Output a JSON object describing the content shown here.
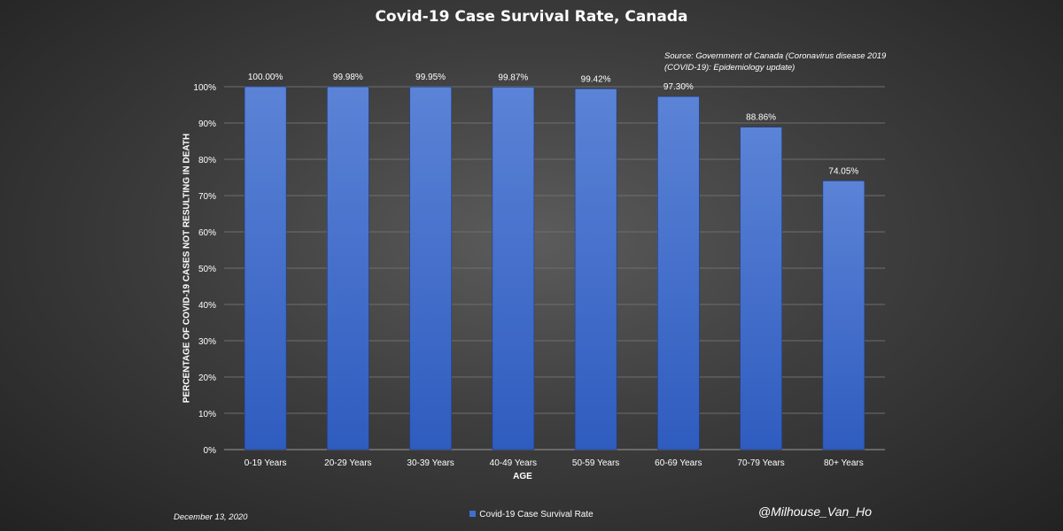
{
  "chart_data": {
    "type": "bar",
    "title": "Covid-19 Case Survival Rate, Canada",
    "source": "Source: Government of Canada (Coronavirus disease 2019 (COVID-19): Epidemiology update)",
    "xlabel": "AGE",
    "ylabel": "PERCENTAGE OF COVID-19 CASES NOT RESULTING IN DEATH",
    "categories": [
      "0-19 Years",
      "20-29 Years",
      "30-39 Years",
      "40-49 Years",
      "50-59 Years",
      "60-69 Years",
      "70-79 Years",
      "80+ Years"
    ],
    "series": [
      {
        "name": "Covid-19 Case Survival Rate",
        "values": [
          100.0,
          99.98,
          99.95,
          99.87,
          99.42,
          97.3,
          88.86,
          74.05
        ],
        "data_labels": [
          "100.00%",
          "99.98%",
          "99.95%",
          "99.87%",
          "99.42%",
          "97.30%",
          "88.86%",
          "74.05%"
        ]
      }
    ],
    "ylim": [
      0,
      100
    ],
    "yticks": [
      "0%",
      "10%",
      "20%",
      "30%",
      "40%",
      "50%",
      "60%",
      "70%",
      "80%",
      "90%",
      "100%"
    ],
    "grid": true,
    "legend_position": "bottom",
    "colors": {
      "bar": "#3f6fd0",
      "bar_light": "#5b83d6",
      "bar_dark": "#2f5cbf",
      "grid": "#6e6e6e",
      "text": "#ffffff"
    }
  },
  "footer": {
    "date": "December 13, 2020",
    "handle": "@Milhouse_Van_Ho"
  }
}
